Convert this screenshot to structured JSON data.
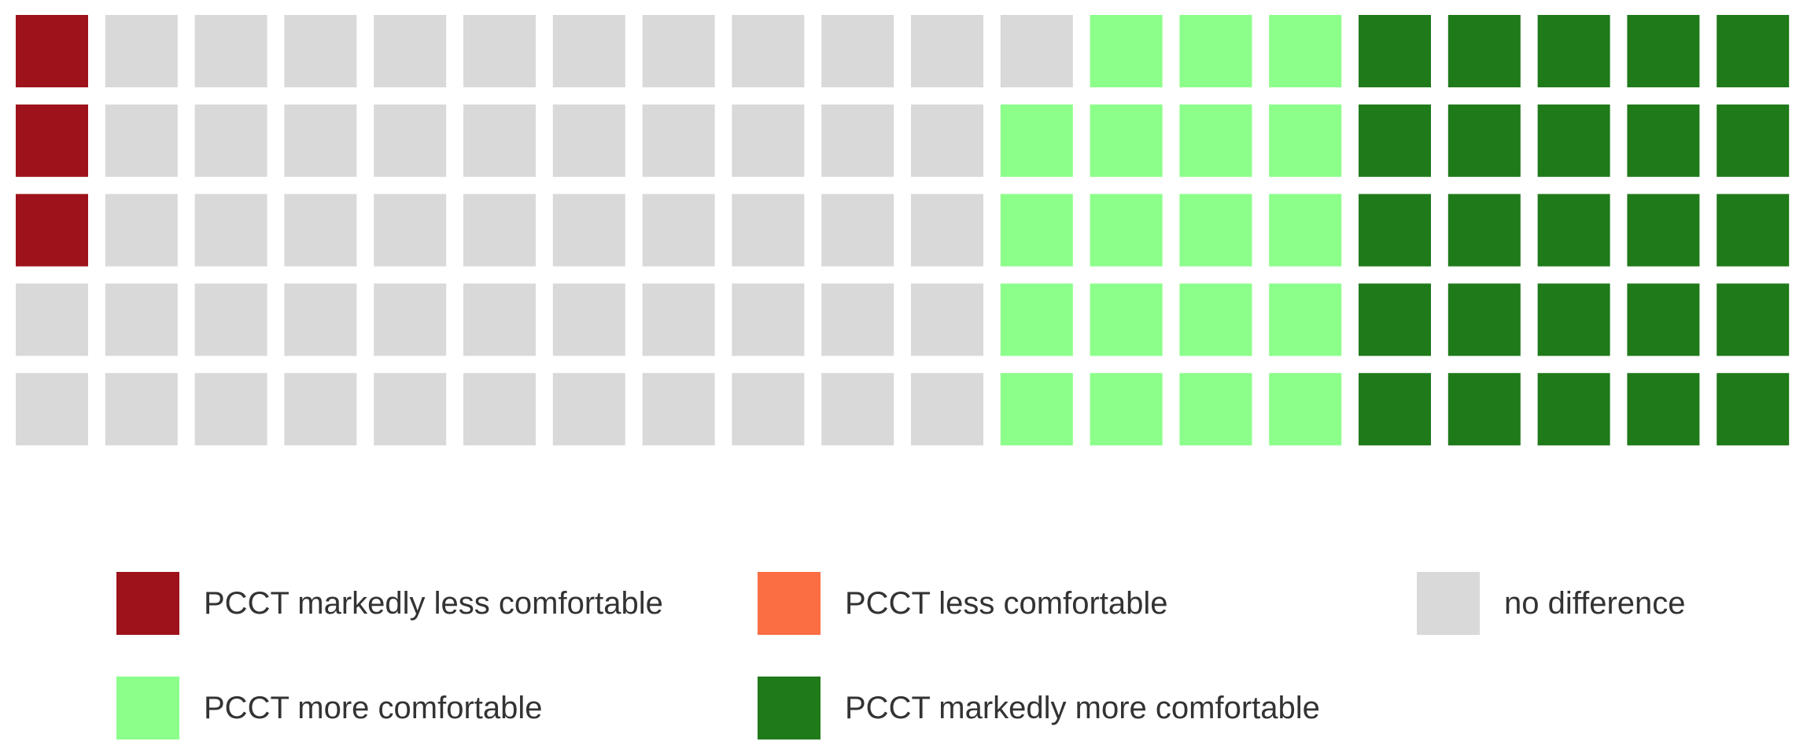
{
  "chart_data": {
    "type": "waffle",
    "grid": {
      "rows": 5,
      "columns": 20,
      "fill_order": "column-major, top-to-bottom within each column"
    },
    "categories": [
      "PCCT markedly less comfortable",
      "PCCT less comfortable",
      "no difference",
      "PCCT more comfortable",
      "PCCT markedly more comfortable"
    ],
    "values": [
      3,
      0,
      53,
      19,
      25
    ],
    "colors": [
      "#9e121b",
      "#fb6d42",
      "#d9d9d9",
      "#8cff8a",
      "#1f7a1a"
    ],
    "legend_placement": "bottom"
  }
}
